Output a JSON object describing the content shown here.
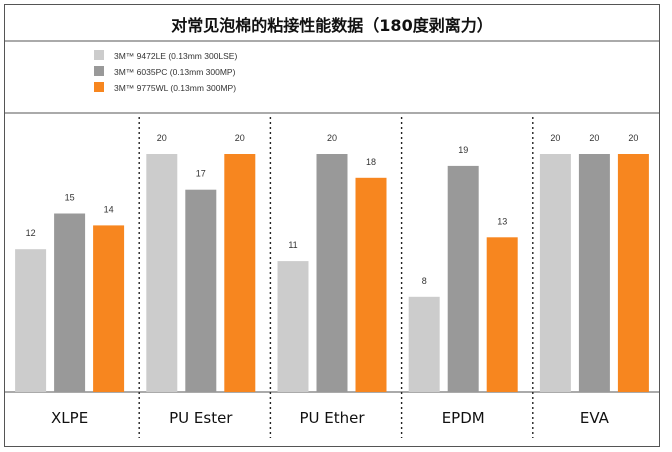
{
  "chart_data": {
    "type": "bar",
    "title": "对常见泡棉的粘接性能数据（180度剥离力）",
    "categories": [
      "XLPE",
      "PU Ester",
      "PU Ether",
      "EPDM",
      "EVA"
    ],
    "series": [
      {
        "name": "3M™ 9472LE (0.13mm 300LSE)",
        "color": "#cccccc",
        "values": [
          12,
          20,
          11,
          8,
          20
        ]
      },
      {
        "name": "3M™ 6035PC (0.13mm 300MP)",
        "color": "#999999",
        "values": [
          15,
          17,
          20,
          19,
          20
        ]
      },
      {
        "name": "3M™ 9775WL (0.13mm 300MP)",
        "color": "#f7861f",
        "values": [
          14,
          20,
          18,
          13,
          20
        ]
      }
    ],
    "ylim": [
      0,
      20
    ],
    "xlabel": "",
    "ylabel": "",
    "legend_position": "top-left",
    "grid": false
  }
}
